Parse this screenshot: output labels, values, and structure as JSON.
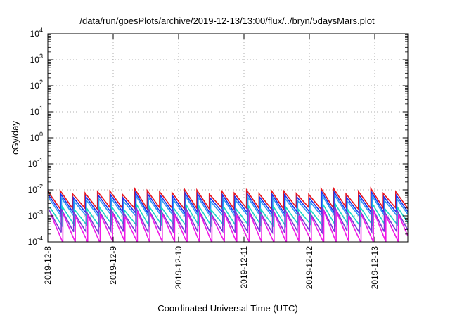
{
  "chart_data": {
    "type": "line",
    "title": "/data/run/goesPlots/archive/2019-12-13/13:00/flux/../bryn/5daysMars.plot",
    "xlabel": "Coordinated Universal Time (UTC)",
    "ylabel": "cGy/day",
    "yscale": "log",
    "ylim": [
      0.0001,
      10000
    ],
    "xlim_days": [
      "2019-12-08 00:00",
      "2019-12-13 13:00"
    ],
    "grid": "dotted",
    "legend": "none",
    "y_ticks": [
      {
        "base": "10",
        "exp": "-4",
        "value": 0.0001
      },
      {
        "base": "10",
        "exp": "-3",
        "value": 0.001
      },
      {
        "base": "10",
        "exp": "-2",
        "value": 0.01
      },
      {
        "base": "10",
        "exp": "-1",
        "value": 0.1
      },
      {
        "base": "10",
        "exp": "0",
        "value": 1
      },
      {
        "base": "10",
        "exp": "1",
        "value": 10
      },
      {
        "base": "10",
        "exp": "2",
        "value": 100
      },
      {
        "base": "10",
        "exp": "3",
        "value": 1000
      },
      {
        "base": "10",
        "exp": "4",
        "value": 10000
      }
    ],
    "x_ticks": [
      {
        "label": "2019-12-8",
        "day": 0
      },
      {
        "label": "2019-12-9",
        "day": 1
      },
      {
        "label": "2019-12-10",
        "day": 2
      },
      {
        "label": "2019-12-11",
        "day": 3
      },
      {
        "label": "2019-12-12",
        "day": 4
      },
      {
        "label": "2019-12-13",
        "day": 5
      }
    ],
    "x_end_day": 5.54,
    "series": [
      {
        "color": "#e8141e",
        "peak": 0.0085,
        "floor": 0.0016,
        "offset": 0.0
      },
      {
        "color": "#1a33f0",
        "peak": 0.0062,
        "floor": 0.0011,
        "offset": 0.01
      },
      {
        "color": "#2a9bf5",
        "peak": 0.0045,
        "floor": 0.0008,
        "offset": 0.02
      },
      {
        "color": "#19d6c6",
        "peak": 0.0021,
        "floor": 0.00035,
        "offset": 0.03
      },
      {
        "color": "#7a36d8",
        "peak": 0.0017,
        "floor": 0.0002,
        "offset": 0.015
      },
      {
        "color": "#ef19e6",
        "peak": 0.0012,
        "floor": 8e-05,
        "offset": 0.04
      }
    ],
    "cycle_days": 0.19
  }
}
